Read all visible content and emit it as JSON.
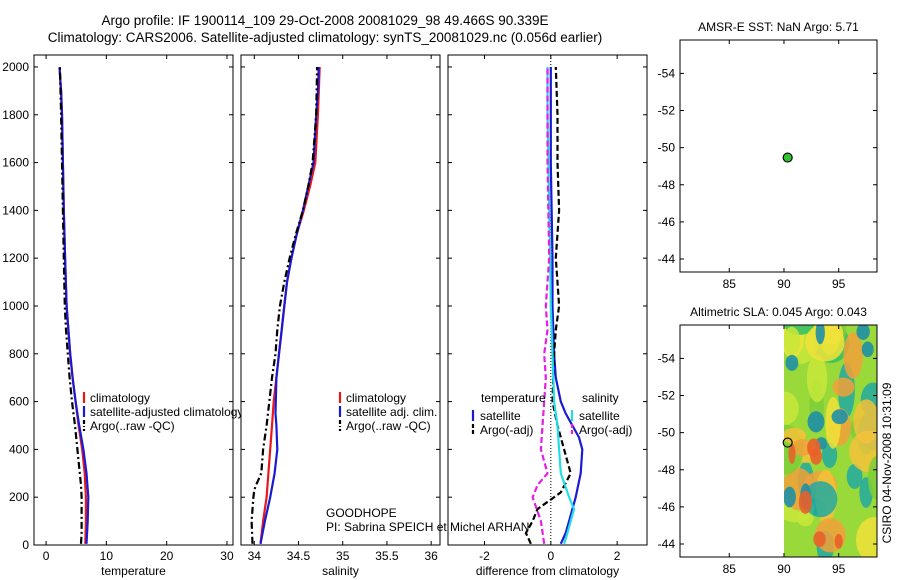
{
  "figure": {
    "title_line1": "Argo profile: IF 1900114_109 29-Oct-2008 20081029_98 49.466S 90.339E",
    "title_line2": "Climatology: CARS2006. Satellite-adjusted climatology: synTS_20081029.nc (0.056d earlier)",
    "footer_goodhope": "GOODHOPE",
    "footer_pi": "PI: Sabrina SPEICH et Michel ARHAN",
    "side_stamp": "CSIRO 04-Nov-2008 10:31:09"
  },
  "colors": {
    "red": "#e8191a",
    "blue": "#1a1ad4",
    "black": "#000000",
    "cyan": "#22dde6",
    "magenta": "#e61ee6",
    "green": "#2ec42e"
  },
  "chart_data": [
    {
      "id": "temperature",
      "type": "line",
      "xlabel": "temperature",
      "ylabel": "",
      "xlim": [
        -2,
        31
      ],
      "ylim": [
        2050,
        0
      ],
      "xticks": [
        0,
        10,
        20,
        30
      ],
      "xtick_labels": [
        "0",
        "10",
        "20",
        "30"
      ],
      "yticks": [
        0,
        200,
        400,
        600,
        800,
        1000,
        1200,
        1400,
        1600,
        1800,
        2000
      ],
      "ytick_labels": [
        "0",
        "200",
        "400",
        "600",
        "800",
        "1000",
        "1200",
        "1400",
        "1600",
        "1800",
        "2000"
      ],
      "legend": [
        "climatology",
        "satellite-adjusted climatology",
        "Argo(..raw -QC)"
      ],
      "legend_position": "lower-right",
      "series": [
        {
          "name": "climatology",
          "color": "red",
          "dash": "solid",
          "x": [
            6.5,
            6.6,
            6.6,
            6.4,
            6.0,
            5.4,
            4.9,
            4.4,
            4.0,
            3.7,
            3.4,
            3.15,
            2.95,
            2.8,
            2.65,
            2.5,
            2.35,
            2.25
          ],
          "y": [
            5,
            100,
            200,
            300,
            400,
            500,
            600,
            700,
            800,
            900,
            1000,
            1200,
            1400,
            1600,
            1800,
            1900,
            1950,
            2000
          ]
        },
        {
          "name": "satellite-adjusted climatology",
          "color": "blue",
          "dash": "solid",
          "x": [
            6.7,
            6.9,
            7.0,
            6.7,
            6.2,
            5.5,
            4.9,
            4.4,
            4.0,
            3.7,
            3.4,
            3.15,
            2.95,
            2.8,
            2.65,
            2.5,
            2.35,
            2.25
          ],
          "y": [
            5,
            100,
            200,
            300,
            400,
            500,
            600,
            700,
            800,
            900,
            1000,
            1200,
            1400,
            1600,
            1800,
            1900,
            1950,
            2000
          ]
        },
        {
          "name": "Argo(..raw -QC)",
          "color": "black",
          "dash": "dashdot",
          "x": [
            5.8,
            5.9,
            5.9,
            5.9,
            5.9,
            5.8,
            5.6,
            5.2,
            4.8,
            4.3,
            3.9,
            3.6,
            3.3,
            3.1,
            2.95,
            2.8,
            2.65,
            2.5,
            2.3
          ],
          "y": [
            5,
            50,
            100,
            150,
            200,
            250,
            300,
            400,
            500,
            600,
            700,
            800,
            900,
            1000,
            1200,
            1400,
            1600,
            1800,
            2000
          ]
        }
      ]
    },
    {
      "id": "salinity",
      "type": "line",
      "xlabel": "salinity",
      "ylabel": "",
      "xlim": [
        33.85,
        36.1
      ],
      "ylim": [
        2050,
        0
      ],
      "xticks": [
        34,
        34.5,
        35,
        35.5,
        36
      ],
      "xtick_labels": [
        "34",
        "34.5",
        "35",
        "35.5",
        "36"
      ],
      "yticks": [
        0,
        200,
        400,
        600,
        800,
        1000,
        1200,
        1400,
        1600,
        1800,
        2000
      ],
      "legend": [
        "climatology",
        "satellite adj. clim.",
        "Argo(..raw -QC)"
      ],
      "legend_position": "lower-right",
      "series": [
        {
          "name": "climatology",
          "color": "red",
          "dash": "solid",
          "x": [
            34.07,
            34.1,
            34.14,
            34.16,
            34.18,
            34.2,
            34.22,
            34.25,
            34.28,
            34.31,
            34.34,
            34.37,
            34.42,
            34.48,
            34.56,
            34.63,
            34.69,
            34.72,
            34.74
          ],
          "y": [
            5,
            100,
            200,
            300,
            400,
            500,
            600,
            700,
            800,
            900,
            1000,
            1100,
            1200,
            1300,
            1400,
            1500,
            1600,
            1800,
            2000
          ]
        },
        {
          "name": "satellite adj. clim.",
          "color": "blue",
          "dash": "solid",
          "x": [
            34.07,
            34.12,
            34.18,
            34.23,
            34.26,
            34.25,
            34.24,
            34.25,
            34.28,
            34.31,
            34.34,
            34.37,
            34.42,
            34.48,
            34.55,
            34.61,
            34.67,
            34.7,
            34.72,
            34.73
          ],
          "y": [
            5,
            100,
            200,
            300,
            400,
            500,
            550,
            700,
            800,
            900,
            1000,
            1100,
            1200,
            1300,
            1400,
            1500,
            1600,
            1800,
            1900,
            2000
          ]
        },
        {
          "name": "Argo(..raw -QC)",
          "color": "black",
          "dash": "dashdot",
          "x": [
            33.98,
            33.97,
            33.99,
            34.0,
            34.02,
            34.08,
            34.1,
            34.14,
            34.17,
            34.2,
            34.24,
            34.26,
            34.29,
            34.34,
            34.4,
            34.47,
            34.55,
            34.61,
            34.66,
            34.7,
            34.71
          ],
          "y": [
            5,
            100,
            200,
            230,
            250,
            300,
            400,
            500,
            600,
            700,
            800,
            900,
            1000,
            1100,
            1200,
            1300,
            1400,
            1500,
            1600,
            1800,
            2000
          ]
        }
      ]
    },
    {
      "id": "difference",
      "type": "line",
      "xlabel": "difference from climatology",
      "ylabel": "",
      "xlim": [
        -3.1,
        2.9
      ],
      "ylim": [
        2050,
        0
      ],
      "xticks": [
        -2,
        0,
        2
      ],
      "xtick_labels": [
        "-2",
        "0",
        "2"
      ],
      "yticks": [
        0,
        200,
        400,
        600,
        800,
        1000,
        1200,
        1400,
        1600,
        1800,
        2000
      ],
      "zero_line": "dotted",
      "legend_columns": [
        {
          "header": "temperature",
          "items": [
            "satellite",
            "Argo(-adj)"
          ]
        },
        {
          "header": "salinity",
          "items": [
            "satellite",
            "Argo(-adj)"
          ]
        }
      ],
      "legend_position": "lower-right",
      "series": [
        {
          "name": "temperature satellite",
          "color": "blue",
          "dash": "solid",
          "x": [
            0.3,
            0.45,
            0.55,
            0.65,
            0.75,
            0.9,
            0.95,
            0.85,
            0.65,
            0.45,
            0.3,
            0.15,
            0.1,
            0.05,
            0.05,
            0.0,
            0.0
          ],
          "y": [
            5,
            50,
            100,
            150,
            200,
            300,
            400,
            450,
            500,
            550,
            600,
            700,
            800,
            1000,
            1200,
            1600,
            2000
          ]
        },
        {
          "name": "temperature Argo(-adj)",
          "color": "black",
          "dash": "dashed",
          "x": [
            -0.6,
            -0.75,
            -0.55,
            -0.4,
            0.3,
            0.6,
            0.4,
            0.2,
            0.05,
            0.1,
            0.15,
            0.25,
            0.2,
            0.15,
            0.25,
            0.2,
            0.2,
            0.15
          ],
          "y": [
            5,
            50,
            100,
            150,
            220,
            300,
            400,
            500,
            600,
            800,
            900,
            1000,
            1100,
            1200,
            1400,
            1600,
            1800,
            2000
          ]
        },
        {
          "name": "salinity satellite",
          "color": "cyan",
          "dash": "solid",
          "x": [
            0.4,
            0.5,
            0.6,
            0.7,
            0.55,
            0.3,
            0.25,
            0.2,
            0.1,
            0.05,
            0.0,
            -0.02,
            -0.05,
            -0.1,
            -0.1
          ],
          "y": [
            5,
            50,
            100,
            150,
            200,
            300,
            400,
            500,
            600,
            800,
            1000,
            1200,
            1400,
            1800,
            2000
          ]
        },
        {
          "name": "salinity Argo(-adj)",
          "color": "magenta",
          "dash": "dashed",
          "x": [
            -0.2,
            -0.3,
            -0.55,
            -0.4,
            -0.1,
            -0.3,
            -0.25,
            -0.2,
            -0.15,
            -0.2,
            -0.1,
            -0.15,
            -0.05,
            -0.1,
            -0.1
          ],
          "y": [
            5,
            100,
            200,
            250,
            300,
            400,
            500,
            600,
            700,
            800,
            900,
            1000,
            1200,
            1600,
            2000
          ]
        }
      ]
    },
    {
      "id": "amsre-sst-map",
      "type": "scatter",
      "title": "AMSR-E SST: NaN Argo: 5.71",
      "xlim": [
        80.5,
        98.5
      ],
      "ylim": [
        -55.8,
        -43.3
      ],
      "xticks": [
        85,
        90,
        95
      ],
      "xtick_labels": [
        "85",
        "90",
        "95"
      ],
      "yticks": [
        -44,
        -46,
        -48,
        -50,
        -52,
        -54
      ],
      "ytick_labels": [
        "-44",
        "-46",
        "-48",
        "-50",
        "-52",
        "-54"
      ],
      "points": [
        {
          "x": 90.339,
          "y": -49.466,
          "color": "green"
        }
      ]
    },
    {
      "id": "altimetric-sla-map",
      "type": "heatmap",
      "title": "Altimetric SLA: 0.045 Argo: 0.043",
      "xlim": [
        80.5,
        98.5
      ],
      "ylim": [
        -55.8,
        -43.3
      ],
      "xticks": [
        85,
        90,
        95
      ],
      "xtick_labels": [
        "85",
        "90",
        "95"
      ],
      "yticks": [
        -44,
        -46,
        -48,
        -50,
        -52,
        -54
      ],
      "ytick_labels": [
        "-44",
        "-46",
        "-48",
        "-50",
        "-52",
        "-54"
      ],
      "data_xlim": [
        90.0,
        98.5
      ],
      "colormap": "jet",
      "points": [
        {
          "x": 90.339,
          "y": -49.466,
          "color": "none"
        }
      ]
    }
  ]
}
